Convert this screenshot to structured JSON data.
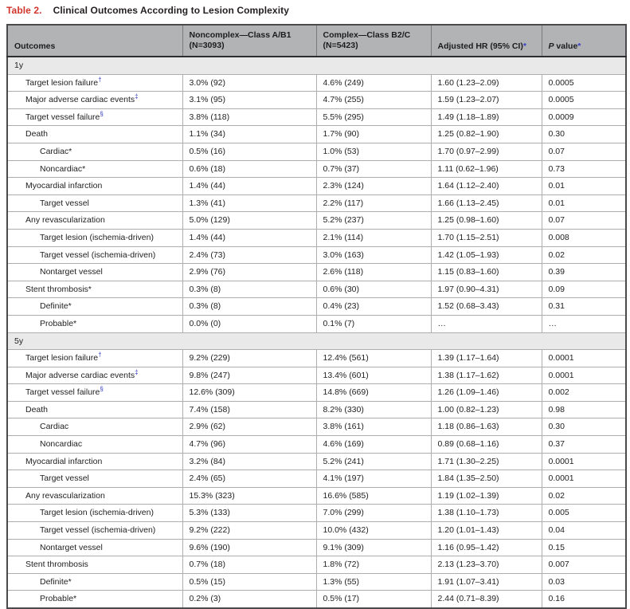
{
  "title": {
    "label": "Table 2.",
    "text": "Clinical Outcomes According to Lesion Complexity"
  },
  "colors": {
    "title_red": "#d0342c",
    "footnote_blue": "#3a41c6",
    "header_bg": "#b2b3b5",
    "section_bg": "#e9e9ea"
  },
  "table": {
    "columns": [
      {
        "label": "Outcomes"
      },
      {
        "label": "Noncomplex—Class A/B1",
        "sub": "(N=3093)"
      },
      {
        "label": "Complex—Class B2/C",
        "sub": "(N=5423)"
      },
      {
        "label": "Adjusted HR (95% CI)",
        "star": "*"
      },
      {
        "italic": "P",
        "label": " value",
        "star": "*"
      }
    ],
    "sections": [
      {
        "label": "1y",
        "rows": [
          {
            "label": "Target lesion failure",
            "sup": "†",
            "level": 1,
            "noncomplex": "3.0% (92)",
            "complex": "4.6% (249)",
            "hr": "1.60 (1.23–2.09)",
            "p": "0.0005"
          },
          {
            "label": "Major adverse cardiac events",
            "sup": "‡",
            "level": 1,
            "noncomplex": "3.1% (95)",
            "complex": "4.7% (255)",
            "hr": "1.59 (1.23–2.07)",
            "p": "0.0005"
          },
          {
            "label": "Target vessel failure",
            "sup": "§",
            "level": 1,
            "noncomplex": "3.8% (118)",
            "complex": "5.5% (295)",
            "hr": "1.49 (1.18–1.89)",
            "p": "0.0009"
          },
          {
            "label": "Death",
            "level": 1,
            "noncomplex": "1.1% (34)",
            "complex": "1.7% (90)",
            "hr": "1.25 (0.82–1.90)",
            "p": "0.30"
          },
          {
            "label": "Cardiac*",
            "level": 2,
            "noncomplex": "0.5% (16)",
            "complex": "1.0% (53)",
            "hr": "1.70 (0.97–2.99)",
            "p": "0.07"
          },
          {
            "label": "Noncardiac*",
            "level": 2,
            "noncomplex": "0.6% (18)",
            "complex": "0.7% (37)",
            "hr": "1.11 (0.62–1.96)",
            "p": "0.73"
          },
          {
            "label": "Myocardial infarction",
            "level": 1,
            "noncomplex": "1.4% (44)",
            "complex": "2.3% (124)",
            "hr": "1.64 (1.12–2.40)",
            "p": "0.01"
          },
          {
            "label": "Target vessel",
            "level": 2,
            "noncomplex": "1.3% (41)",
            "complex": "2.2% (117)",
            "hr": "1.66 (1.13–2.45)",
            "p": "0.01"
          },
          {
            "label": "Any revascularization",
            "level": 1,
            "noncomplex": "5.0% (129)",
            "complex": "5.2% (237)",
            "hr": "1.25 (0.98–1.60)",
            "p": "0.07"
          },
          {
            "label": "Target lesion (ischemia-driven)",
            "level": 2,
            "noncomplex": "1.4% (44)",
            "complex": "2.1% (114)",
            "hr": "1.70 (1.15–2.51)",
            "p": "0.008"
          },
          {
            "label": "Target vessel (ischemia-driven)",
            "level": 2,
            "noncomplex": "2.4% (73)",
            "complex": "3.0% (163)",
            "hr": "1.42 (1.05–1.93)",
            "p": "0.02"
          },
          {
            "label": "Nontarget vessel",
            "level": 2,
            "noncomplex": "2.9% (76)",
            "complex": "2.6% (118)",
            "hr": "1.15 (0.83–1.60)",
            "p": "0.39"
          },
          {
            "label": "Stent thrombosis*",
            "level": 1,
            "noncomplex": "0.3% (8)",
            "complex": "0.6% (30)",
            "hr": "1.97 (0.90–4.31)",
            "p": "0.09"
          },
          {
            "label": "Definite*",
            "level": 2,
            "noncomplex": "0.3% (8)",
            "complex": "0.4% (23)",
            "hr": "1.52 (0.68–3.43)",
            "p": "0.31"
          },
          {
            "label": "Probable*",
            "level": 2,
            "noncomplex": "0.0% (0)",
            "complex": "0.1% (7)",
            "hr": "…",
            "p": "…"
          }
        ]
      },
      {
        "label": "5y",
        "rows": [
          {
            "label": "Target lesion failure",
            "sup": "†",
            "level": 1,
            "noncomplex": "9.2% (229)",
            "complex": "12.4% (561)",
            "hr": "1.39 (1.17–1.64)",
            "p": "0.0001"
          },
          {
            "label": "Major adverse cardiac events",
            "sup": "‡",
            "level": 1,
            "noncomplex": "9.8% (247)",
            "complex": "13.4% (601)",
            "hr": "1.38 (1.17–1.62)",
            "p": "0.0001"
          },
          {
            "label": "Target vessel failure",
            "sup": "§",
            "level": 1,
            "noncomplex": "12.6% (309)",
            "complex": "14.8% (669)",
            "hr": "1.26 (1.09–1.46)",
            "p": "0.002"
          },
          {
            "label": "Death",
            "level": 1,
            "noncomplex": "7.4% (158)",
            "complex": "8.2% (330)",
            "hr": "1.00 (0.82–1.23)",
            "p": "0.98"
          },
          {
            "label": "Cardiac",
            "level": 2,
            "noncomplex": "2.9% (62)",
            "complex": "3.8% (161)",
            "hr": "1.18 (0.86–1.63)",
            "p": "0.30"
          },
          {
            "label": "Noncardiac",
            "level": 2,
            "noncomplex": "4.7% (96)",
            "complex": "4.6% (169)",
            "hr": "0.89 (0.68–1.16)",
            "p": "0.37"
          },
          {
            "label": "Myocardial infarction",
            "level": 1,
            "noncomplex": "3.2% (84)",
            "complex": "5.2% (241)",
            "hr": "1.71 (1.30–2.25)",
            "p": "0.0001"
          },
          {
            "label": "Target vessel",
            "level": 2,
            "noncomplex": "2.4% (65)",
            "complex": "4.1% (197)",
            "hr": "1.84 (1.35–2.50)",
            "p": "0.0001"
          },
          {
            "label": "Any revascularization",
            "level": 1,
            "noncomplex": "15.3% (323)",
            "complex": "16.6% (585)",
            "hr": "1.19 (1.02–1.39)",
            "p": "0.02"
          },
          {
            "label": "Target lesion (ischemia-driven)",
            "level": 2,
            "noncomplex": "5.3% (133)",
            "complex": "7.0% (299)",
            "hr": "1.38 (1.10–1.73)",
            "p": "0.005"
          },
          {
            "label": "Target vessel (ischemia-driven)",
            "level": 2,
            "noncomplex": "9.2% (222)",
            "complex": "10.0% (432)",
            "hr": "1.20 (1.01–1.43)",
            "p": "0.04"
          },
          {
            "label": "Nontarget vessel",
            "level": 2,
            "noncomplex": "9.6% (190)",
            "complex": "9.1% (309)",
            "hr": "1.16 (0.95–1.42)",
            "p": "0.15"
          },
          {
            "label": "Stent thrombosis",
            "level": 1,
            "noncomplex": "0.7% (18)",
            "complex": "1.8% (72)",
            "hr": "2.13 (1.23–3.70)",
            "p": "0.007"
          },
          {
            "label": "Definite*",
            "level": 2,
            "noncomplex": "0.5% (15)",
            "complex": "1.3% (55)",
            "hr": "1.91 (1.07–3.41)",
            "p": "0.03"
          },
          {
            "label": "Probable*",
            "level": 2,
            "noncomplex": "0.2% (3)",
            "complex": "0.5% (17)",
            "hr": "2.44 (0.71–8.39)",
            "p": "0.16"
          }
        ]
      }
    ]
  }
}
